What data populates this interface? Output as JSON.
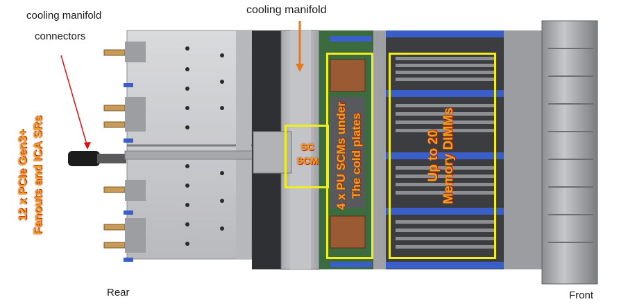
{
  "labels": {
    "top_left_line1": "cooling manifold",
    "top_left_line2": "connectors",
    "top_center": "cooling manifold",
    "rear": "Rear",
    "front": "Front",
    "left_vertical_line1": "12 x PCIe Gen3+",
    "left_vertical_line2": "Fanouts and ICA SRs",
    "sc_line1": "SC",
    "sc_line2": "SCM",
    "pu_line1": "4 x PU SCMs under",
    "pu_line2": "The cold plates",
    "dimm_line1": "Up to 20",
    "dimm_line2": "Memory DIMMs"
  },
  "colors": {
    "highlight_box": "#f2ee1e",
    "annotation_text": "#f0a020",
    "annotation_arrow": "#e8781e",
    "connector_arrow": "#e01010",
    "chassis_metal": "#c8c9cb",
    "dimm_block": "#3a3a3a",
    "board_green": "#3b6b3e"
  }
}
